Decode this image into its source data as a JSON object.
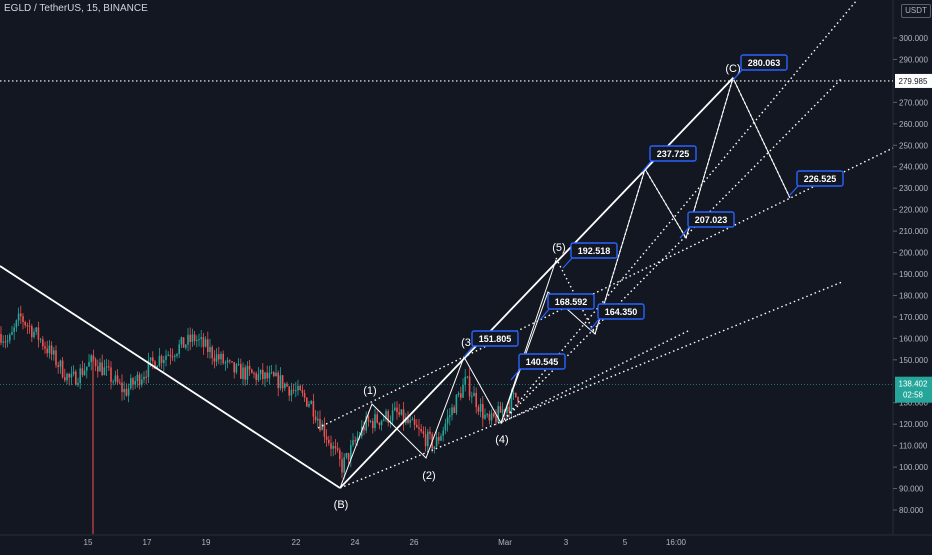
{
  "header": {
    "symbol_title": "EGLD / TetherUS, 15, BINANCE",
    "axis_unit": "USDT"
  },
  "price_axis": {
    "ticks": [
      "300.000",
      "290.000",
      "270.000",
      "260.000",
      "250.000",
      "240.000",
      "230.000",
      "220.000",
      "210.000",
      "200.000",
      "190.000",
      "180.000",
      "170.000",
      "160.000",
      "150.000",
      "130.000",
      "120.000",
      "110.000",
      "100.000",
      "90.000",
      "80.000"
    ],
    "tick_values": [
      300,
      290,
      270,
      260,
      250,
      240,
      230,
      220,
      210,
      200,
      190,
      180,
      170,
      160,
      150,
      130,
      120,
      110,
      100,
      90,
      80
    ],
    "horizontal_line_label": "279.985",
    "current_price_label": "138.402",
    "countdown_label": "02:58"
  },
  "time_axis": {
    "labels": [
      "15",
      "17",
      "19",
      "22",
      "24",
      "26",
      "Mar",
      "3",
      "5",
      "16:00"
    ]
  },
  "colors": {
    "background": "#131722",
    "candle_up": "#26a69a",
    "candle_down": "#ef5350",
    "line": "#ffffff",
    "callout_border": "#2962ff",
    "callout_fill": "#131722",
    "current_price": "#26a69a"
  },
  "chart_data": {
    "type": "candlestick",
    "title": "EGLD / TetherUS, 15, BINANCE",
    "ylim": [
      76,
      310
    ],
    "x_dates": [
      "15",
      "17",
      "19",
      "22",
      "24",
      "26",
      "Mar",
      "3",
      "5",
      "16:00"
    ],
    "horizontal_line": 279.985,
    "current_price": 138.402,
    "price_path_approx": [
      {
        "x": 0.0,
        "y": 162
      },
      {
        "x": 0.1,
        "y": 158
      },
      {
        "x": 0.25,
        "y": 170
      },
      {
        "x": 0.5,
        "y": 160
      },
      {
        "x": 0.9,
        "y": 140
      },
      {
        "x": 1.2,
        "y": 150
      },
      {
        "x": 1.6,
        "y": 135
      },
      {
        "x": 2.0,
        "y": 150
      },
      {
        "x": 2.5,
        "y": 160
      },
      {
        "x": 3.0,
        "y": 145
      },
      {
        "x": 3.6,
        "y": 140
      },
      {
        "x": 4.0,
        "y": 130
      },
      {
        "x": 4.4,
        "y": 100
      },
      {
        "x": 4.7,
        "y": 120
      },
      {
        "x": 5.1,
        "y": 125
      },
      {
        "x": 5.6,
        "y": 110
      },
      {
        "x": 6.0,
        "y": 140
      },
      {
        "x": 6.3,
        "y": 120
      },
      {
        "x": 6.7,
        "y": 135
      }
    ],
    "annotations": {
      "wave_labels": [
        "(1)",
        "(2)",
        "(3",
        "(4)",
        "(5)",
        "(B)",
        "(C)"
      ],
      "price_labels": [
        "151.805",
        "140.545",
        "192.518",
        "168.592",
        "164.350",
        "237.725",
        "207.023",
        "280.063",
        "226.525"
      ]
    }
  }
}
